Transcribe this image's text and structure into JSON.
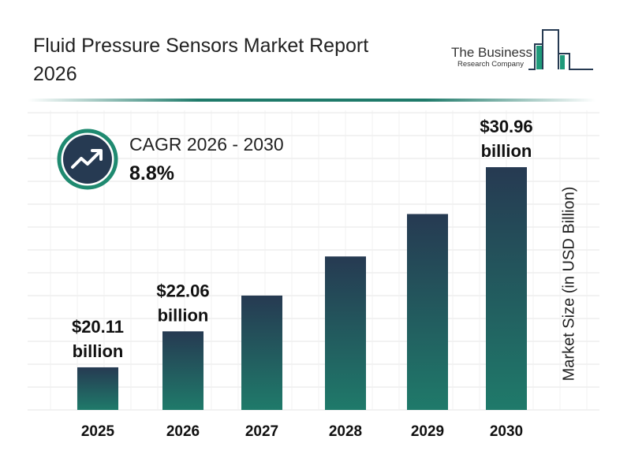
{
  "title": "Fluid Pressure Sensors Market Report 2026",
  "logo": {
    "line1": "The Business",
    "line2": "Research Company"
  },
  "cagr": {
    "label": "CAGR 2026 - 2030",
    "value": "8.8%",
    "icon": "trending-up-icon"
  },
  "colors": {
    "bar_top": "#263a52",
    "bar_bottom": "#1f7a6a",
    "accent": "#1f8a70",
    "dark": "#263a52"
  },
  "chart_data": {
    "type": "bar",
    "title": "",
    "xlabel": "",
    "ylabel": "Market Size (in USD Billion)",
    "categories": [
      "2025",
      "2026",
      "2027",
      "2028",
      "2029",
      "2030"
    ],
    "values": [
      20.11,
      22.06,
      24.0,
      26.12,
      28.42,
      30.96
    ],
    "data_labels": [
      {
        "index": 0,
        "line1": "$20.11",
        "line2": "billion"
      },
      {
        "index": 1,
        "line1": "$22.06",
        "line2": "billion"
      },
      {
        "index": 5,
        "line1": "$30.96",
        "line2": "billion"
      }
    ],
    "grid": true
  }
}
